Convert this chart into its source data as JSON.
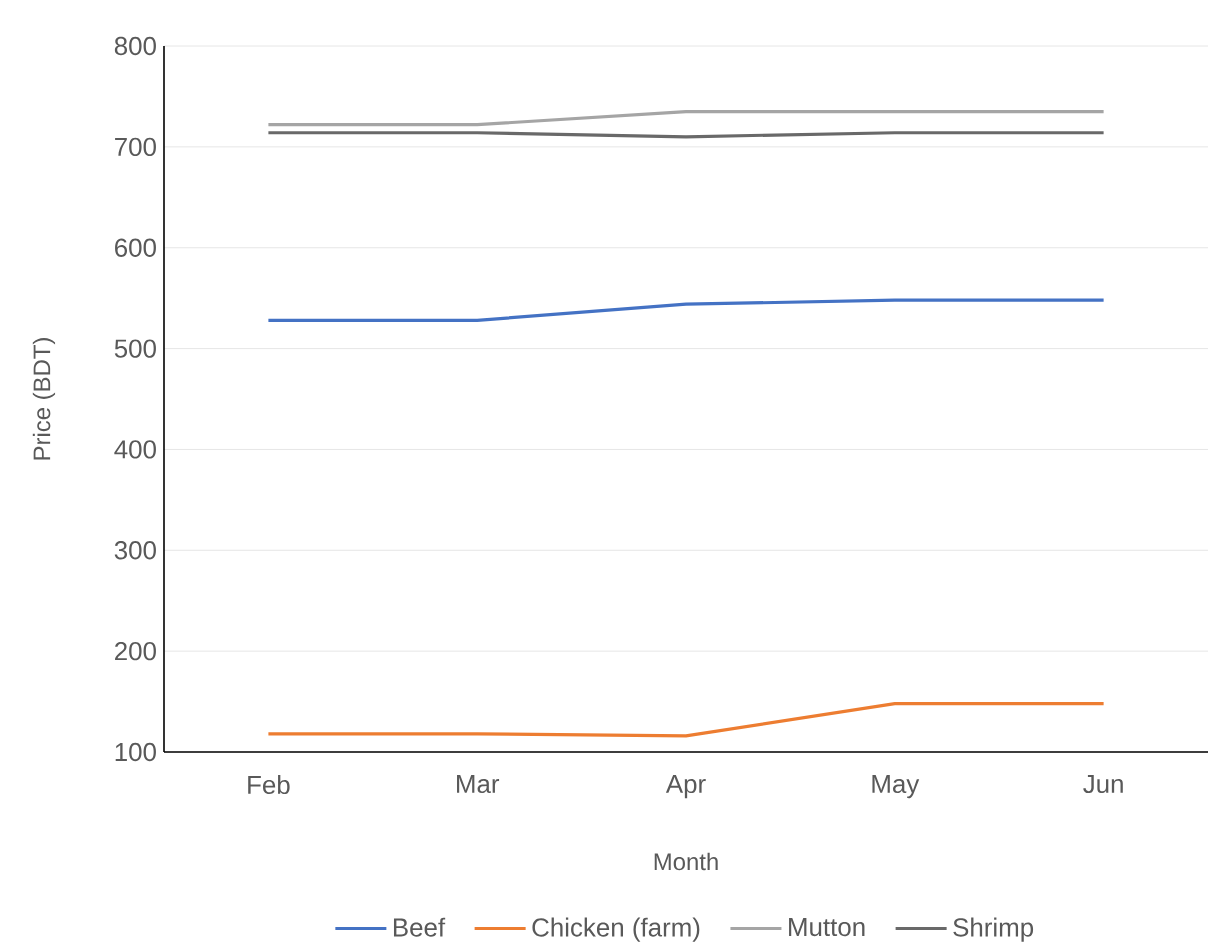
{
  "chart_data": {
    "type": "line",
    "xlabel": "Month",
    "ylabel": "Price (BDT)",
    "categories": [
      "Feb",
      "Mar",
      "Apr",
      "May",
      "Jun"
    ],
    "series": [
      {
        "name": "Beef",
        "color": "#4472c4",
        "values": [
          528,
          528,
          544,
          548,
          548
        ]
      },
      {
        "name": "Chicken (farm)",
        "color": "#ed7d31",
        "values": [
          118,
          118,
          116,
          148,
          148
        ]
      },
      {
        "name": "Mutton",
        "color": "#a5a5a5",
        "values": [
          722,
          722,
          735,
          735,
          735
        ]
      },
      {
        "name": "Shrimp",
        "color": "#696969",
        "values": [
          714,
          714,
          710,
          714,
          714
        ]
      }
    ],
    "ylim": [
      100,
      800
    ],
    "yticks": [
      100,
      200,
      300,
      400,
      500,
      600,
      700,
      800
    ],
    "grid": "y",
    "legend": "bottom",
    "marker": "none",
    "line_style": "solid"
  }
}
